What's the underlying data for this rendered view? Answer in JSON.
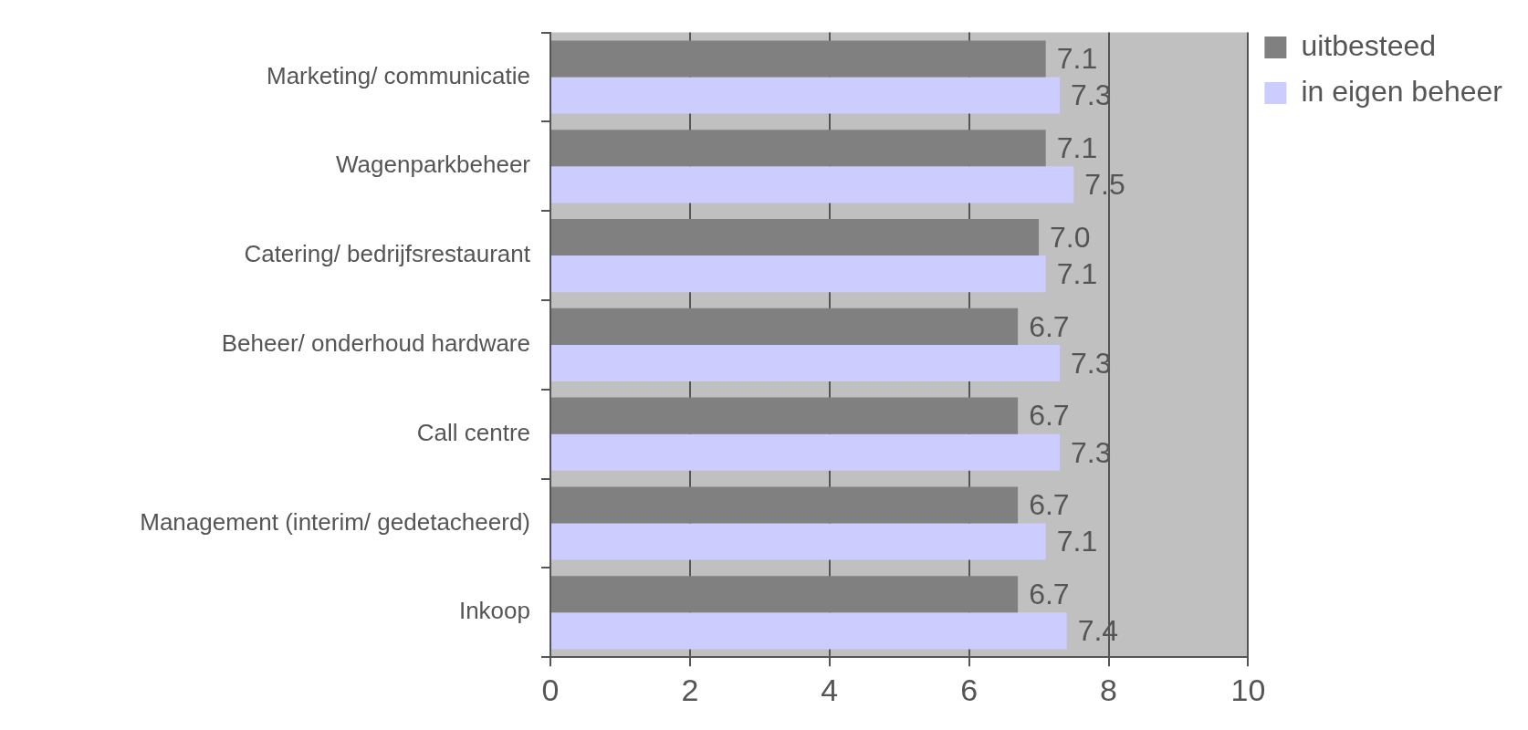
{
  "chart_data": {
    "type": "bar",
    "orientation": "horizontal",
    "categories": [
      "Marketing/ communicatie",
      "Wagenparkbeheer",
      "Catering/ bedrijfsrestaurant",
      "Beheer/ onderhoud hardware",
      "Call centre",
      "Management (interim/ gedetacheerd)",
      "Inkoop"
    ],
    "series": [
      {
        "name": "uitbesteed",
        "color": "#808080",
        "values": [
          7.1,
          7.1,
          7.0,
          6.7,
          6.7,
          6.7,
          6.7
        ],
        "value_labels": [
          "7.1",
          "7.1",
          "7.0",
          "6.7",
          "6.7",
          "6.7",
          "6.7"
        ]
      },
      {
        "name": "in eigen beheer",
        "color": "#ccccff",
        "values": [
          7.3,
          7.5,
          7.1,
          7.3,
          7.3,
          7.1,
          7.4
        ],
        "value_labels": [
          "7.3",
          "7.5",
          "7.1",
          "7.3",
          "7.3",
          "7.1",
          "7.4"
        ]
      }
    ],
    "xlim": [
      0,
      10
    ],
    "xticks": [
      0,
      2,
      4,
      6,
      8,
      10
    ],
    "grid": "x",
    "legend": "top right"
  }
}
